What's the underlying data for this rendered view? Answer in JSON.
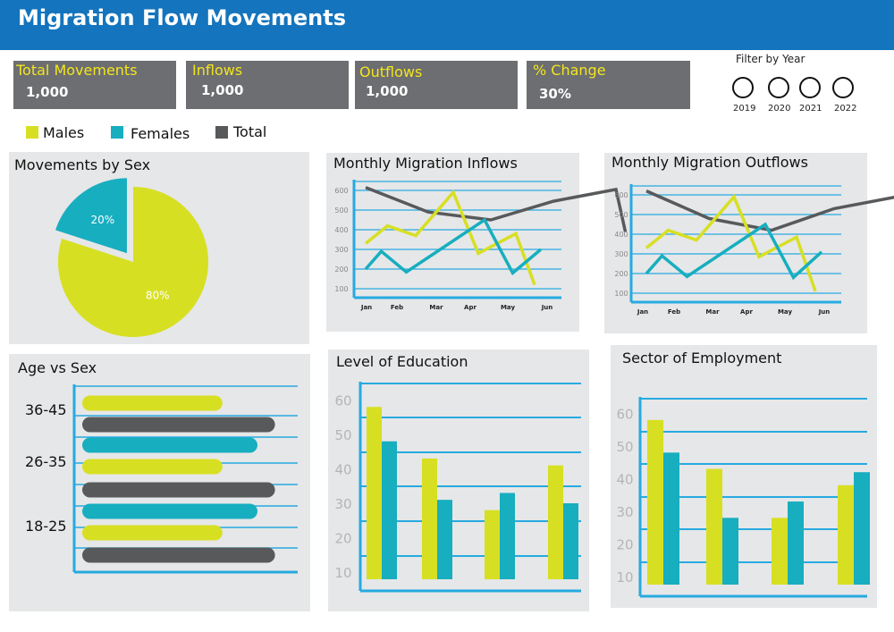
{
  "header": {
    "title": "Migration Flow Movements"
  },
  "kpis": [
    {
      "label": "Total Movements",
      "value": "1,000"
    },
    {
      "label": "Inflows",
      "value": "1,000"
    },
    {
      "label": "Outflows",
      "value": "1,000"
    },
    {
      "label": "% Change",
      "value": "30%"
    }
  ],
  "filter": {
    "title": "Filter by Year",
    "years": [
      "2019",
      "2020",
      "2021",
      "2022"
    ]
  },
  "legend": [
    {
      "label": "Males",
      "color": "#d7df23"
    },
    {
      "label": "Females",
      "color": "#17aebf"
    },
    {
      "label": "Total",
      "color": "#58595b"
    }
  ],
  "colors": {
    "males": "#d7df23",
    "females": "#17aebf",
    "total": "#58595b",
    "axis": "#27aae1",
    "header": "#1474bd"
  },
  "chart_data": [
    {
      "id": "sex",
      "type": "pie",
      "title": "Movements by Sex",
      "slices": [
        {
          "label": "80%",
          "value": 80,
          "series": "Males"
        },
        {
          "label": "20%",
          "value": 20,
          "series": "Females"
        }
      ]
    },
    {
      "id": "inflows",
      "type": "line",
      "title": "Monthly Migration Inflows",
      "x": [
        "Jan",
        "Feb",
        "Mar",
        "Apr",
        "May",
        "Jun"
      ],
      "yticks": [
        100,
        200,
        300,
        400,
        500,
        600
      ],
      "series": [
        {
          "name": "Total",
          "values": [
            [
              0,
              615
            ],
            [
              1,
              490
            ],
            [
              2,
              450
            ],
            [
              3,
              545
            ],
            [
              4,
              605
            ],
            [
              4.15,
              390
            ]
          ]
        },
        {
          "name": "Males",
          "values": [
            [
              0,
              330
            ],
            [
              0.35,
              420
            ],
            [
              0.8,
              370
            ],
            [
              1.4,
              590
            ],
            [
              1.8,
              280
            ],
            [
              2.4,
              380
            ],
            [
              2.7,
              120
            ]
          ]
        },
        {
          "name": "Females",
          "values": [
            [
              0,
              200
            ],
            [
              0.25,
              290
            ],
            [
              0.65,
              185
            ],
            [
              1.9,
              450
            ],
            [
              2.35,
              180
            ],
            [
              2.8,
              300
            ]
          ]
        }
      ],
      "ylim": [
        0,
        650
      ]
    },
    {
      "id": "outflows",
      "type": "line",
      "title": "Monthly Migration Outflows",
      "x": [
        "Jan",
        "Feb",
        "Mar",
        "Apr",
        "May",
        "Jun"
      ],
      "yticks": [
        100,
        200,
        300,
        400,
        500,
        600
      ],
      "series": [
        {
          "name": "Total",
          "values": [
            [
              0,
              620
            ],
            [
              1,
              480
            ],
            [
              2,
              420
            ],
            [
              3,
              530
            ],
            [
              4,
              590
            ],
            [
              4.15,
              385
            ]
          ]
        },
        {
          "name": "Males",
          "values": [
            [
              0,
              330
            ],
            [
              0.35,
              420
            ],
            [
              0.8,
              370
            ],
            [
              1.4,
              590
            ],
            [
              1.8,
              285
            ],
            [
              2.4,
              385
            ],
            [
              2.7,
              110
            ]
          ]
        },
        {
          "name": "Females",
          "values": [
            [
              0,
              200
            ],
            [
              0.25,
              290
            ],
            [
              0.65,
              185
            ],
            [
              1.9,
              450
            ],
            [
              2.35,
              180
            ],
            [
              2.8,
              310
            ]
          ]
        }
      ],
      "ylim": [
        0,
        650
      ]
    },
    {
      "id": "age",
      "type": "bar",
      "orientation": "horizontal",
      "title": "Age vs Sex",
      "categories": [
        "36-45",
        "26-35",
        "18-25"
      ],
      "series": [
        {
          "name": "Males",
          "values": [
            32,
            32,
            32
          ]
        },
        {
          "name": "Females",
          "values": [
            null,
            40,
            40
          ]
        },
        {
          "name": "Total",
          "values": [
            44,
            44,
            44
          ]
        }
      ]
    },
    {
      "id": "education",
      "type": "bar",
      "title": "Level of Education",
      "categories": [
        "",
        "",
        "",
        ""
      ],
      "yticks": [
        10,
        20,
        30,
        40,
        50,
        60
      ],
      "series": [
        {
          "name": "Males",
          "values": [
            58,
            43,
            28,
            41
          ]
        },
        {
          "name": "Females",
          "values": [
            48,
            31,
            33,
            30
          ]
        }
      ],
      "ylim": [
        8,
        65
      ]
    },
    {
      "id": "employment",
      "type": "bar",
      "title": "Sector of Employment",
      "categories": [
        "",
        "",
        "",
        ""
      ],
      "yticks": [
        10,
        20,
        30,
        40,
        50,
        60
      ],
      "series": [
        {
          "name": "Males",
          "values": [
            58,
            43,
            28,
            38
          ]
        },
        {
          "name": "Females",
          "values": [
            48,
            28,
            33,
            42
          ]
        }
      ],
      "ylim": [
        8,
        65
      ]
    }
  ]
}
